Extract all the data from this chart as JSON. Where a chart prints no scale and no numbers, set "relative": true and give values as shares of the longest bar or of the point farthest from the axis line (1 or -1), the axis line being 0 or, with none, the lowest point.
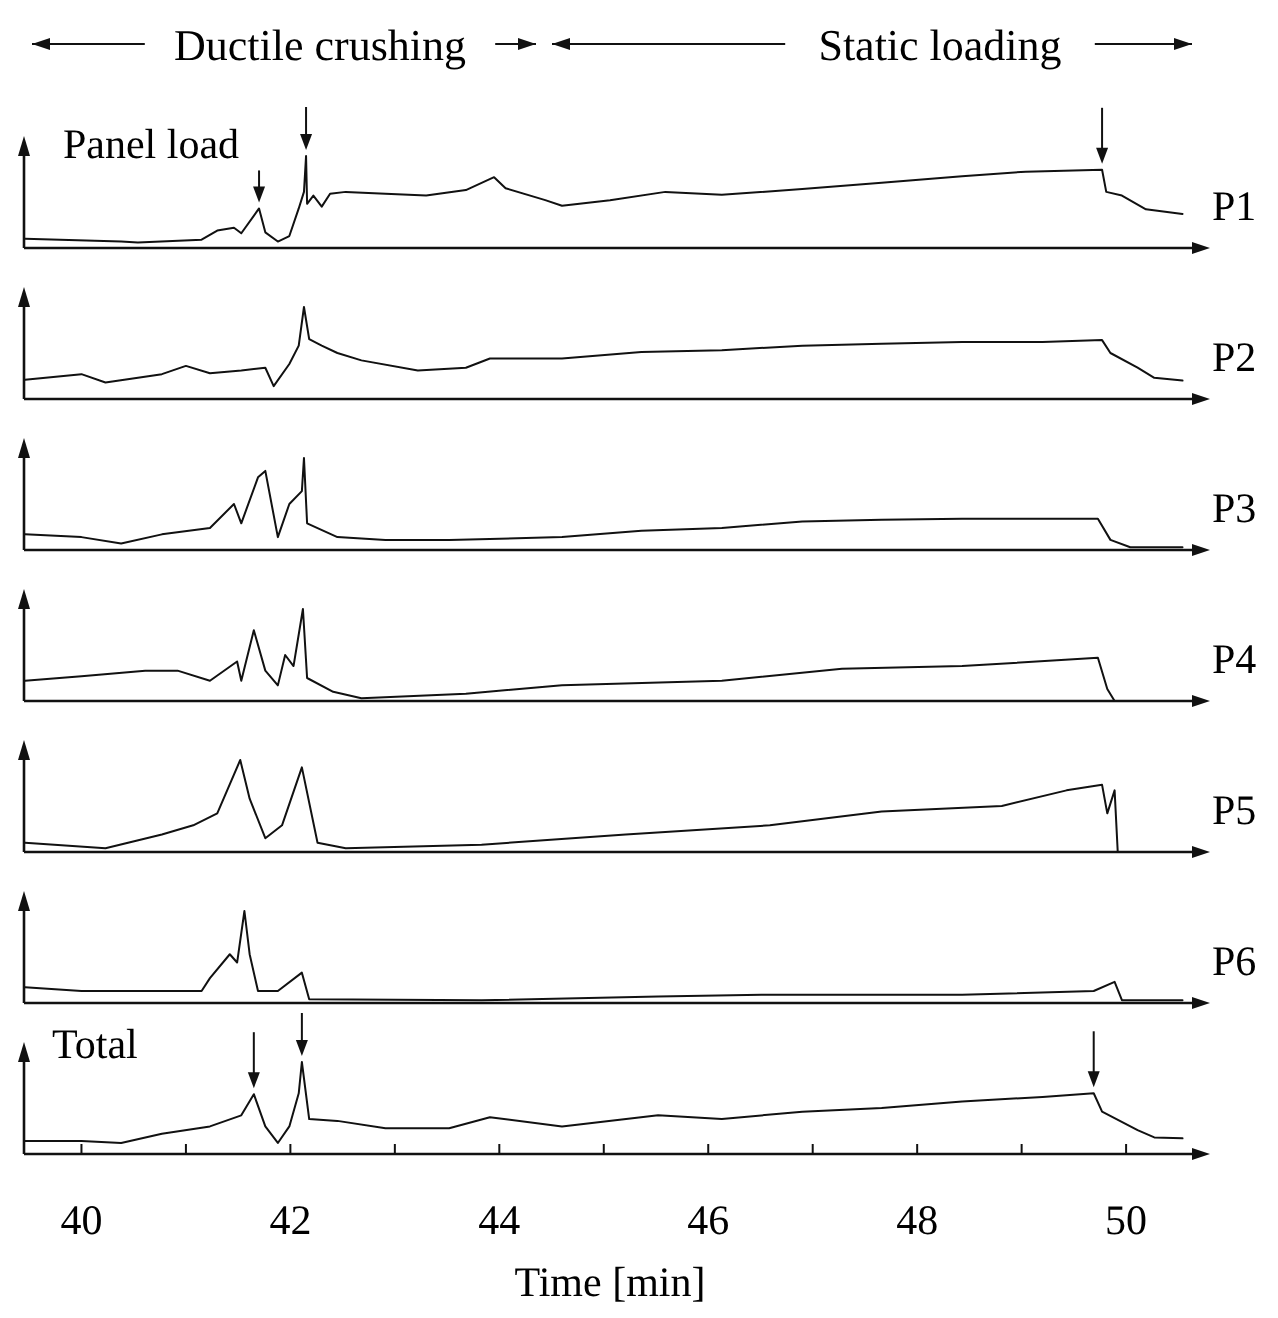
{
  "chart_data": [
    {
      "type": "line",
      "relative": true,
      "xlim": [
        39.45,
        50.65
      ],
      "annotations": [
        "Ductile crushing",
        "Static loading",
        {
          "text": "Panel load",
          "x": 41.7,
          "y": 0.43
        }
      ],
      "series": [
        {
          "name": "P1",
          "color": "#111111",
          "x": [
            39.46,
            40.38,
            40.54,
            41.15,
            41.3,
            41.46,
            41.53,
            41.7,
            41.76,
            41.88,
            41.99,
            42.08,
            42.13,
            42.15,
            42.16,
            42.22,
            42.3,
            42.38,
            42.53,
            42.91,
            43.3,
            43.68,
            43.95,
            44.06,
            44.44,
            44.6,
            45.06,
            45.59,
            46.13,
            46.9,
            47.66,
            48.43,
            49.04,
            49.77,
            49.81,
            49.96,
            50.19,
            50.54
          ],
          "values": [
            0.1,
            0.07,
            0.06,
            0.09,
            0.19,
            0.22,
            0.16,
            0.43,
            0.17,
            0.07,
            0.13,
            0.43,
            0.61,
            1.0,
            0.48,
            0.57,
            0.45,
            0.59,
            0.61,
            0.59,
            0.57,
            0.63,
            0.77,
            0.65,
            0.52,
            0.46,
            0.52,
            0.61,
            0.58,
            0.64,
            0.71,
            0.78,
            0.83,
            0.85,
            0.61,
            0.57,
            0.42,
            0.37
          ]
        }
      ]
    },
    {
      "type": "line",
      "relative": true,
      "xlim": [
        39.45,
        50.65
      ],
      "series": [
        {
          "name": "P2",
          "color": "#111111",
          "x": [
            39.46,
            40,
            40.23,
            40.77,
            41.0,
            41.23,
            41.53,
            41.76,
            41.84,
            41.99,
            42.08,
            42.13,
            42.18,
            42.3,
            42.45,
            42.68,
            43.22,
            43.68,
            43.91,
            44.6,
            45.36,
            46.13,
            46.9,
            47.66,
            48.43,
            49.2,
            49.77,
            49.85,
            50.11,
            50.27,
            50.54
          ],
          "values": [
            0.21,
            0.27,
            0.18,
            0.27,
            0.36,
            0.28,
            0.31,
            0.34,
            0.14,
            0.38,
            0.58,
            1.0,
            0.65,
            0.58,
            0.5,
            0.42,
            0.31,
            0.34,
            0.44,
            0.44,
            0.51,
            0.53,
            0.58,
            0.6,
            0.62,
            0.62,
            0.64,
            0.5,
            0.34,
            0.23,
            0.2
          ]
        }
      ]
    },
    {
      "type": "line",
      "relative": true,
      "xlim": [
        39.45,
        50.65
      ],
      "series": [
        {
          "name": "P3",
          "color": "#111111",
          "x": [
            39.46,
            40,
            40.38,
            40.77,
            41.23,
            41.46,
            41.53,
            41.69,
            41.76,
            41.88,
            41.99,
            42.11,
            42.13,
            42.16,
            42.45,
            42.91,
            43.52,
            44.6,
            45.36,
            46.13,
            46.9,
            47.66,
            48.43,
            49.73,
            49.85,
            50.04,
            50.54
          ],
          "values": [
            0.17,
            0.14,
            0.07,
            0.17,
            0.24,
            0.5,
            0.29,
            0.79,
            0.86,
            0.14,
            0.5,
            0.64,
            1.0,
            0.29,
            0.14,
            0.11,
            0.11,
            0.14,
            0.21,
            0.24,
            0.31,
            0.33,
            0.34,
            0.34,
            0.11,
            0.03,
            0.03
          ]
        }
      ]
    },
    {
      "type": "line",
      "relative": true,
      "xlim": [
        39.45,
        50.65
      ],
      "series": [
        {
          "name": "P4",
          "color": "#111111",
          "x": [
            39.46,
            40,
            40.61,
            40.92,
            41.23,
            41.49,
            41.53,
            41.65,
            41.76,
            41.88,
            41.95,
            42.03,
            42.12,
            42.16,
            42.41,
            42.68,
            43.68,
            44.6,
            46.13,
            47.28,
            48.43,
            49.73,
            49.82,
            49.89,
            50.54
          ],
          "values": [
            0.22,
            0.27,
            0.33,
            0.33,
            0.22,
            0.43,
            0.22,
            0.77,
            0.33,
            0.17,
            0.5,
            0.38,
            1.0,
            0.25,
            0.1,
            0.03,
            0.08,
            0.17,
            0.22,
            0.35,
            0.38,
            0.47,
            0.13,
            0,
            0
          ]
        }
      ]
    },
    {
      "type": "line",
      "relative": true,
      "xlim": [
        39.45,
        50.65
      ],
      "series": [
        {
          "name": "P5",
          "color": "#111111",
          "x": [
            39.46,
            40.23,
            40.77,
            41.07,
            41.3,
            41.52,
            41.61,
            41.76,
            41.92,
            42.11,
            42.26,
            42.53,
            43.83,
            45.21,
            46.59,
            47.66,
            48.81,
            49.43,
            49.77,
            49.82,
            49.89,
            49.92,
            50.54
          ],
          "values": [
            0.1,
            0.04,
            0.19,
            0.29,
            0.42,
            1.0,
            0.58,
            0.15,
            0.29,
            0.92,
            0.1,
            0.04,
            0.08,
            0.19,
            0.29,
            0.44,
            0.5,
            0.67,
            0.73,
            0.42,
            0.67,
            0,
            0
          ]
        }
      ]
    },
    {
      "type": "line",
      "relative": true,
      "xlim": [
        39.45,
        50.65
      ],
      "series": [
        {
          "name": "P6",
          "color": "#111111",
          "x": [
            39.46,
            40,
            41.15,
            41.23,
            41.42,
            41.49,
            41.56,
            41.61,
            41.69,
            41.88,
            42.11,
            42.18,
            43.83,
            45.52,
            46.51,
            48.43,
            49.69,
            49.89,
            49.96,
            50.54
          ],
          "values": [
            0.17,
            0.13,
            0.13,
            0.27,
            0.53,
            0.44,
            1.0,
            0.53,
            0.13,
            0.13,
            0.33,
            0.04,
            0.03,
            0.07,
            0.09,
            0.09,
            0.13,
            0.23,
            0.03,
            0.03
          ]
        }
      ]
    },
    {
      "type": "line",
      "relative": true,
      "xlim": [
        39.45,
        50.65
      ],
      "xlabel": "Time [min]",
      "xticks": [
        40,
        {
          "value": 41,
          "label": null
        },
        42,
        {
          "value": 43,
          "label": null
        },
        44,
        {
          "value": 45,
          "label": null
        },
        46,
        {
          "value": 47,
          "label": null
        },
        48,
        {
          "value": 49,
          "label": null
        },
        50
      ],
      "series": [
        {
          "name": "Total",
          "color": "#111111",
          "x": [
            39.46,
            40,
            40.38,
            40.77,
            41.23,
            41.53,
            41.65,
            41.76,
            41.88,
            41.99,
            42.08,
            42.11,
            42.18,
            42.45,
            42.91,
            43.52,
            43.91,
            44.6,
            45.52,
            46.13,
            46.9,
            47.66,
            48.43,
            49.2,
            49.69,
            49.77,
            50.11,
            50.27,
            50.54
          ],
          "values": [
            0.14,
            0.14,
            0.12,
            0.22,
            0.3,
            0.42,
            0.65,
            0.3,
            0.12,
            0.3,
            0.66,
            1.0,
            0.38,
            0.36,
            0.28,
            0.28,
            0.4,
            0.3,
            0.42,
            0.38,
            0.46,
            0.5,
            0.57,
            0.62,
            0.66,
            0.46,
            0.26,
            0.18,
            0.17
          ]
        }
      ]
    }
  ]
}
